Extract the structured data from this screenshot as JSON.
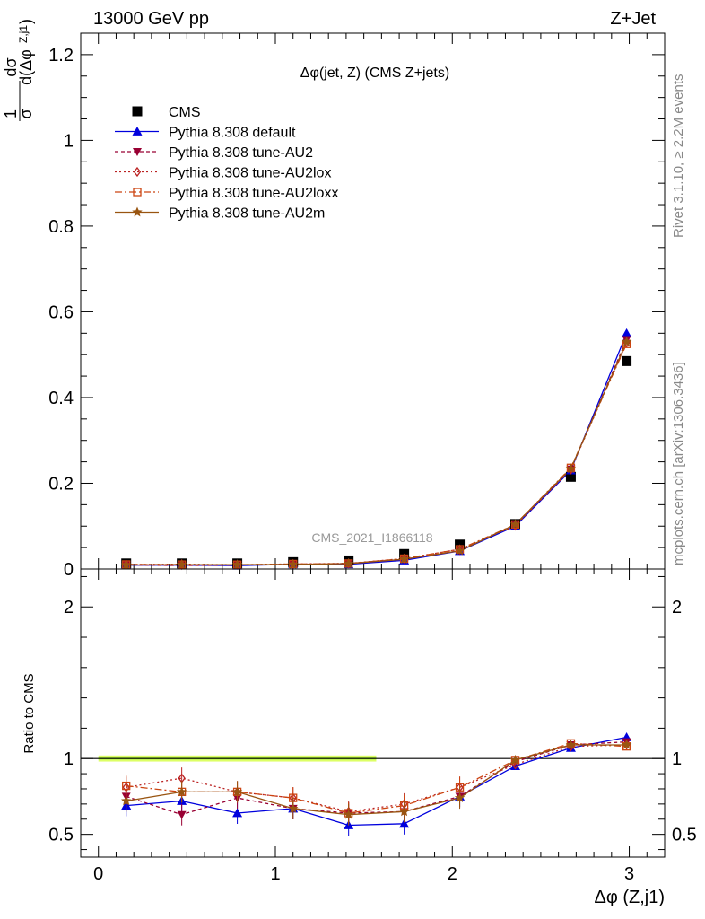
{
  "header": {
    "left": "13000 GeV pp",
    "right": "Z+Jet"
  },
  "side_labels": {
    "rivet": "Rivet 3.1.10, ≥ 2.2M events",
    "mcplots": "mcplots.cern.ch [arXiv:1306.3436]"
  },
  "watermark": "CMS_2021_I1866118",
  "colors": {
    "cms": "#000000",
    "default": "#0000dd",
    "au2": "#990033",
    "au2lox": "#bb2222",
    "au2loxx": "#cc4411",
    "au2m": "#995511",
    "band_outer": "#ddff66",
    "band_inner": "#aaee44"
  },
  "chart_data": [
    {
      "type": "scatter",
      "panel": "main",
      "title": "Δφ(jet, Z) (CMS Z+jets)",
      "xlabel": "Δφ (Z,j1)",
      "ylabel": "1/σ dσ/d(Δφ^{Z,j1})",
      "xlim": [
        -0.1,
        3.2
      ],
      "ylim": [
        0,
        1.25
      ],
      "yticks": [
        "0",
        "0.2",
        "0.4",
        "0.6",
        "0.8",
        "1",
        "1.2"
      ],
      "legend_position": "top-left",
      "x": [
        0.157,
        0.471,
        0.785,
        1.1,
        1.414,
        1.728,
        2.042,
        2.356,
        2.67,
        2.985
      ],
      "series": [
        {
          "key": "cms",
          "name": "CMS",
          "marker": "square-filled",
          "dash": "",
          "values": [
            0.013,
            0.013,
            0.013,
            0.016,
            0.02,
            0.035,
            0.057,
            0.105,
            0.215,
            0.485
          ]
        },
        {
          "key": "default",
          "name": "Pythia 8.308 default",
          "marker": "triangle-up",
          "dash": "",
          "values": [
            0.009,
            0.009,
            0.008,
            0.011,
            0.011,
            0.02,
            0.042,
            0.1,
            0.23,
            0.55
          ]
        },
        {
          "key": "au2",
          "name": "Pythia 8.308 tune-AU2",
          "marker": "triangle-down",
          "dash": "4,3",
          "values": [
            0.0097,
            0.0082,
            0.0095,
            0.0106,
            0.013,
            0.0228,
            0.0427,
            0.104,
            0.233,
            0.535
          ]
        },
        {
          "key": "au2lox",
          "name": "Pythia 8.308 tune-AU2lox",
          "marker": "diamond-open",
          "dash": "2,3",
          "values": [
            0.0105,
            0.0113,
            0.0101,
            0.0117,
            0.0132,
            0.0245,
            0.046,
            0.101,
            0.232,
            0.528
          ]
        },
        {
          "key": "au2loxx",
          "name": "Pythia 8.308 tune-AU2loxx",
          "marker": "square-open",
          "dash": "8,3,2,3",
          "values": [
            0.0106,
            0.0102,
            0.0101,
            0.0117,
            0.0128,
            0.0242,
            0.046,
            0.104,
            0.236,
            0.525
          ]
        },
        {
          "key": "au2m",
          "name": "Pythia 8.308 tune-AU2m",
          "marker": "star",
          "dash": "",
          "values": [
            0.0094,
            0.0101,
            0.0101,
            0.0106,
            0.0126,
            0.0228,
            0.0424,
            0.104,
            0.234,
            0.53
          ]
        }
      ]
    },
    {
      "type": "scatter",
      "panel": "ratio",
      "ylabel": "Ratio to CMS",
      "xlabel": "Δφ (Z,j1)",
      "xlim": [
        -0.1,
        3.2
      ],
      "ylim": [
        0.35,
        2.25
      ],
      "yticks": [
        "0.5",
        "1",
        "2"
      ],
      "xticks": [
        "0",
        "1",
        "2",
        "3"
      ],
      "band": {
        "x": [
          0.0,
          1.57
        ],
        "half_width": 0.02
      },
      "x": [
        0.157,
        0.471,
        0.785,
        1.1,
        1.414,
        1.728,
        2.042,
        2.356,
        2.67,
        2.985
      ],
      "series": [
        {
          "key": "default",
          "name": "Pythia 8.308 default",
          "values": [
            0.69,
            0.72,
            0.64,
            0.67,
            0.56,
            0.57,
            0.75,
            0.95,
            1.07,
            1.14
          ]
        },
        {
          "key": "au2",
          "name": "Pythia 8.308 tune-AU2",
          "values": [
            0.75,
            0.63,
            0.74,
            0.67,
            0.64,
            0.65,
            0.75,
            0.98,
            1.09,
            1.11
          ]
        },
        {
          "key": "au2lox",
          "name": "Pythia 8.308 tune-AU2lox",
          "values": [
            0.81,
            0.87,
            0.78,
            0.74,
            0.65,
            0.7,
            0.81,
            0.96,
            1.08,
            1.09
          ]
        },
        {
          "key": "au2loxx",
          "name": "Pythia 8.308 tune-AU2loxx",
          "values": [
            0.82,
            0.78,
            0.78,
            0.74,
            0.64,
            0.69,
            0.81,
            0.99,
            1.1,
            1.08
          ]
        },
        {
          "key": "au2m",
          "name": "Pythia 8.308 tune-AU2m",
          "values": [
            0.72,
            0.78,
            0.78,
            0.67,
            0.63,
            0.65,
            0.74,
            0.99,
            1.09,
            1.09
          ]
        }
      ]
    }
  ]
}
